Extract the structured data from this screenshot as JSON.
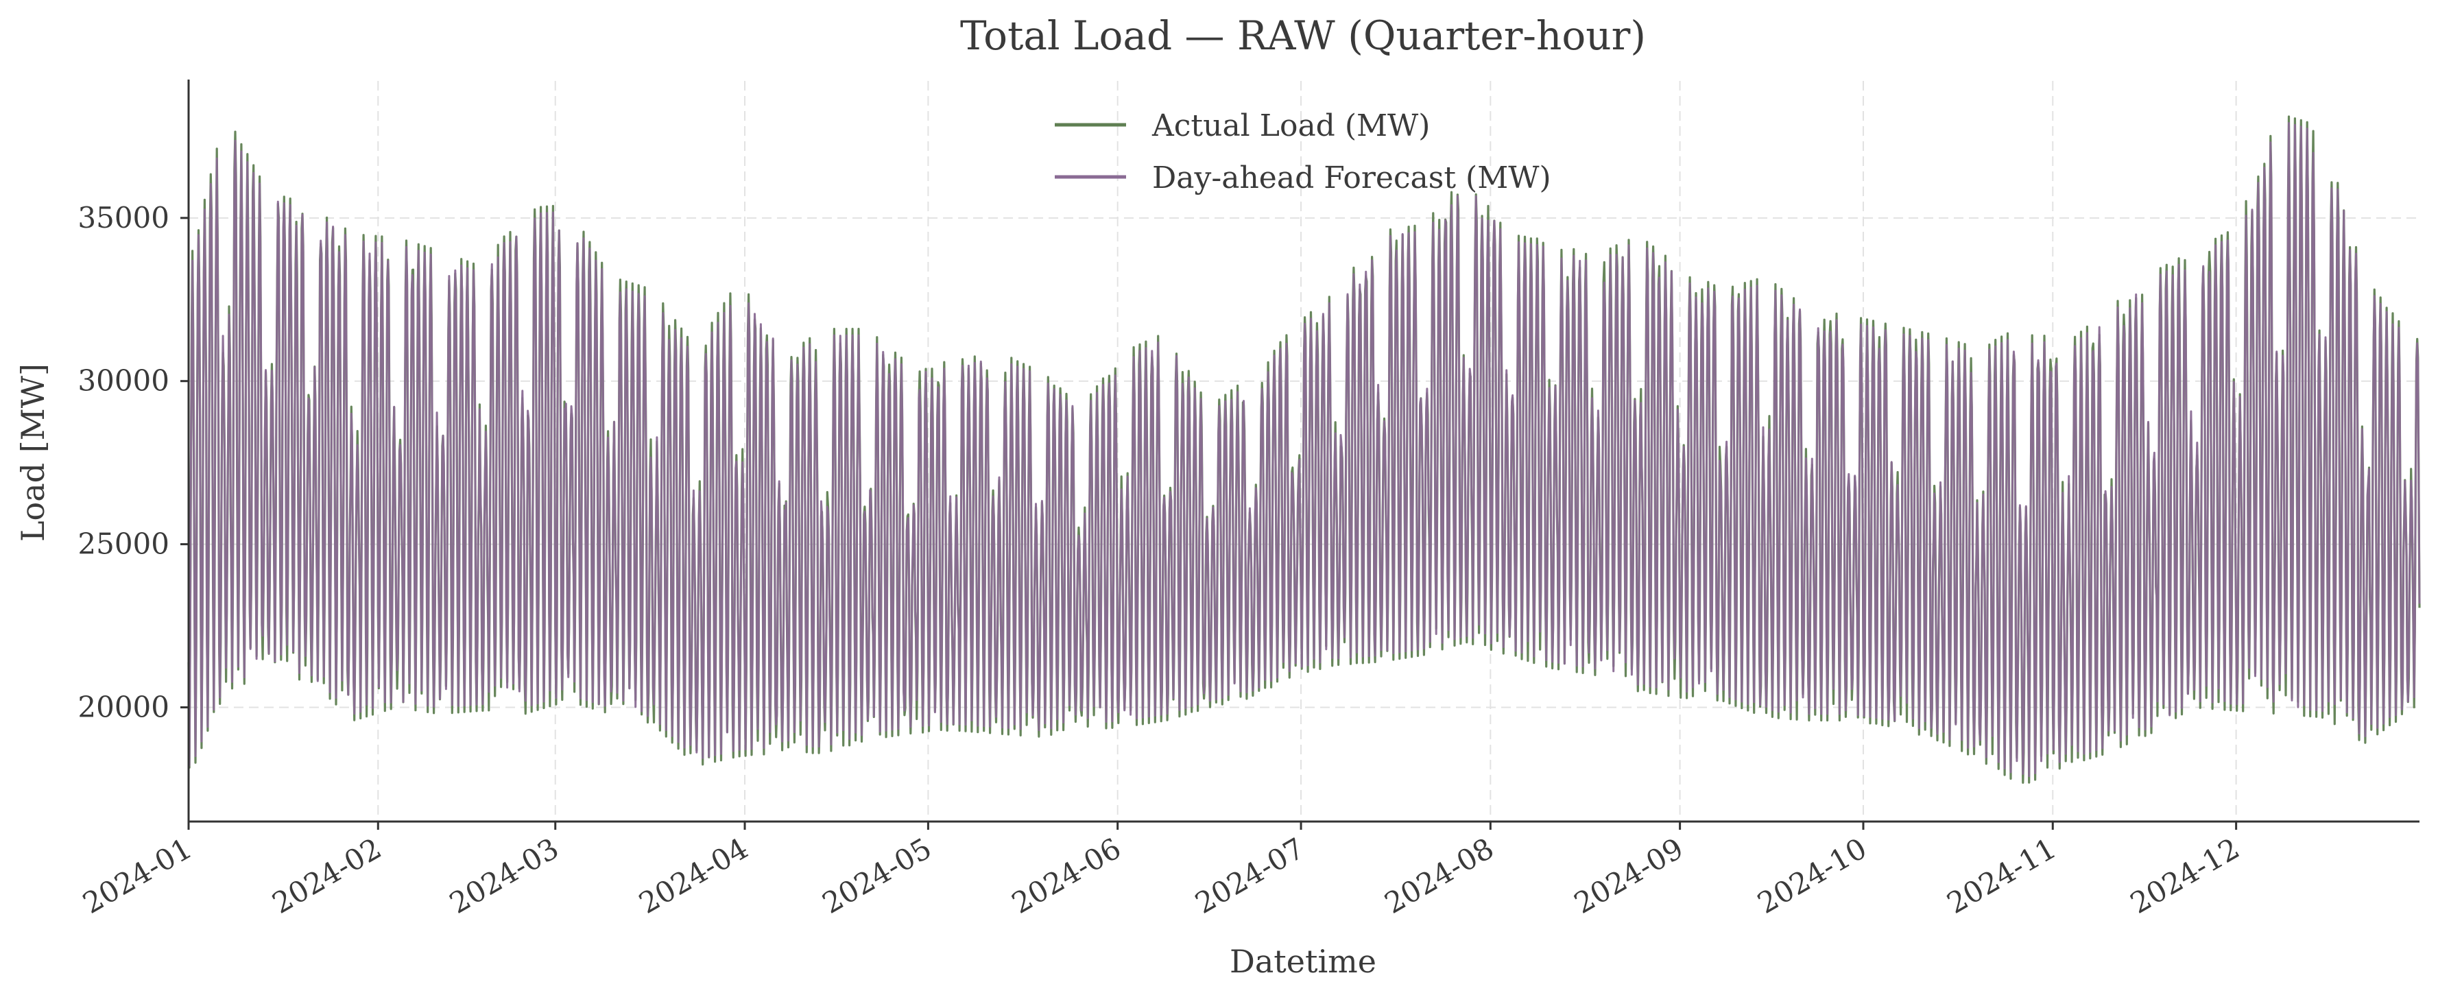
{
  "chart_data": {
    "type": "line",
    "title": "Total Load — RAW (Quarter-hour)",
    "xlabel": "Datetime",
    "ylabel": "Load [MW]",
    "xlim": [
      "2024-01-01",
      "2024-12-31"
    ],
    "ylim": [
      16500,
      39200
    ],
    "x_ticks": [
      "2024-01",
      "2024-02",
      "2024-03",
      "2024-04",
      "2024-05",
      "2024-06",
      "2024-07",
      "2024-08",
      "2024-09",
      "2024-10",
      "2024-11",
      "2024-12"
    ],
    "y_ticks": [
      20000,
      25000,
      30000,
      35000
    ],
    "grid": true,
    "legend_position": "top-center",
    "series": [
      {
        "name": "Actual Load (MW)",
        "color": "#5f7f52",
        "resolution": "quarter-hour; weekly peak/trough approximation",
        "x": [
          "2024-01-01",
          "2024-01-07",
          "2024-01-14",
          "2024-01-21",
          "2024-01-28",
          "2024-02-04",
          "2024-02-11",
          "2024-02-18",
          "2024-02-25",
          "2024-03-03",
          "2024-03-10",
          "2024-03-17",
          "2024-03-24",
          "2024-03-31",
          "2024-04-07",
          "2024-04-14",
          "2024-04-21",
          "2024-04-28",
          "2024-05-05",
          "2024-05-12",
          "2024-05-19",
          "2024-05-26",
          "2024-06-02",
          "2024-06-09",
          "2024-06-16",
          "2024-06-23",
          "2024-06-30",
          "2024-07-07",
          "2024-07-14",
          "2024-07-21",
          "2024-07-28",
          "2024-08-04",
          "2024-08-11",
          "2024-08-18",
          "2024-08-25",
          "2024-09-01",
          "2024-09-08",
          "2024-09-15",
          "2024-09-22",
          "2024-09-29",
          "2024-10-06",
          "2024-10-13",
          "2024-10-20",
          "2024-10-27",
          "2024-11-03",
          "2024-11-10",
          "2024-11-17",
          "2024-11-24",
          "2024-12-01",
          "2024-12-08",
          "2024-12-15",
          "2024-12-22",
          "2024-12-29"
        ],
        "peak": [
          33500,
          38200,
          35800,
          35400,
          34500,
          34400,
          34000,
          33500,
          35300,
          35400,
          33200,
          32800,
          31000,
          33100,
          31200,
          31600,
          31600,
          30500,
          30600,
          30900,
          30400,
          29200,
          30900,
          31500,
          29200,
          30200,
          31700,
          32800,
          34600,
          34800,
          36300,
          34500,
          34300,
          33800,
          34500,
          33500,
          32800,
          33200,
          32200,
          32000,
          31700,
          31400,
          31000,
          31700,
          31100,
          32200,
          33300,
          34000,
          34700,
          38200,
          37800,
          33200,
          31500
        ],
        "trough": [
          17800,
          20500,
          21000,
          20800,
          19600,
          20000,
          19800,
          19900,
          19800,
          20200,
          19800,
          19500,
          18200,
          18500,
          18600,
          18600,
          19000,
          19200,
          19300,
          19200,
          19100,
          19300,
          19400,
          19600,
          20000,
          20300,
          21000,
          21300,
          21400,
          21600,
          22000,
          21600,
          21200,
          21000,
          20500,
          20300,
          20200,
          19700,
          19600,
          19600,
          19400,
          19000,
          18400,
          17600,
          18200,
          18600,
          19200,
          20000,
          19900,
          19800,
          19700,
          18900,
          19800
        ]
      },
      {
        "name": "Day-ahead Forecast (MW)",
        "color": "#8a6b94",
        "resolution": "quarter-hour; weekly peak/trough approximation",
        "x": [
          "2024-01-01",
          "2024-01-07",
          "2024-01-14",
          "2024-01-21",
          "2024-01-28",
          "2024-02-04",
          "2024-02-11",
          "2024-02-18",
          "2024-02-25",
          "2024-03-03",
          "2024-03-10",
          "2024-03-17",
          "2024-03-24",
          "2024-03-31",
          "2024-04-07",
          "2024-04-14",
          "2024-04-21",
          "2024-04-28",
          "2024-05-05",
          "2024-05-12",
          "2024-05-19",
          "2024-05-26",
          "2024-06-02",
          "2024-06-09",
          "2024-06-16",
          "2024-06-23",
          "2024-06-30",
          "2024-07-07",
          "2024-07-14",
          "2024-07-21",
          "2024-07-28",
          "2024-08-04",
          "2024-08-11",
          "2024-08-18",
          "2024-08-25",
          "2024-09-01",
          "2024-09-08",
          "2024-09-15",
          "2024-09-22",
          "2024-09-29",
          "2024-10-06",
          "2024-10-13",
          "2024-10-20",
          "2024-10-27",
          "2024-11-03",
          "2024-11-10",
          "2024-11-17",
          "2024-11-24",
          "2024-12-01",
          "2024-12-08",
          "2024-12-15",
          "2024-12-22",
          "2024-12-29"
        ],
        "peak": [
          33200,
          37900,
          35600,
          35200,
          34300,
          34200,
          33800,
          33300,
          35100,
          35200,
          33000,
          32500,
          30700,
          32800,
          31000,
          31400,
          31400,
          30300,
          30400,
          30700,
          30200,
          29000,
          30700,
          31300,
          29000,
          30000,
          31500,
          32600,
          34400,
          34600,
          36100,
          34300,
          34100,
          33600,
          34300,
          33300,
          32600,
          33000,
          32000,
          31800,
          31500,
          31200,
          30800,
          31500,
          30900,
          32000,
          33100,
          33800,
          34500,
          38000,
          37600,
          33000,
          31300
        ],
        "trough": [
          18000,
          20700,
          21200,
          21000,
          19800,
          20200,
          20000,
          20100,
          20000,
          20400,
          20000,
          19700,
          18400,
          18700,
          18800,
          18800,
          19200,
          19400,
          19500,
          19400,
          19300,
          19500,
          19600,
          19800,
          20200,
          20500,
          21200,
          21500,
          21600,
          21800,
          22200,
          21800,
          21400,
          21200,
          20700,
          20500,
          20400,
          19900,
          19800,
          19800,
          19600,
          19200,
          18600,
          17800,
          18400,
          18800,
          19400,
          20200,
          20100,
          20000,
          19900,
          19100,
          20000
        ]
      }
    ]
  }
}
